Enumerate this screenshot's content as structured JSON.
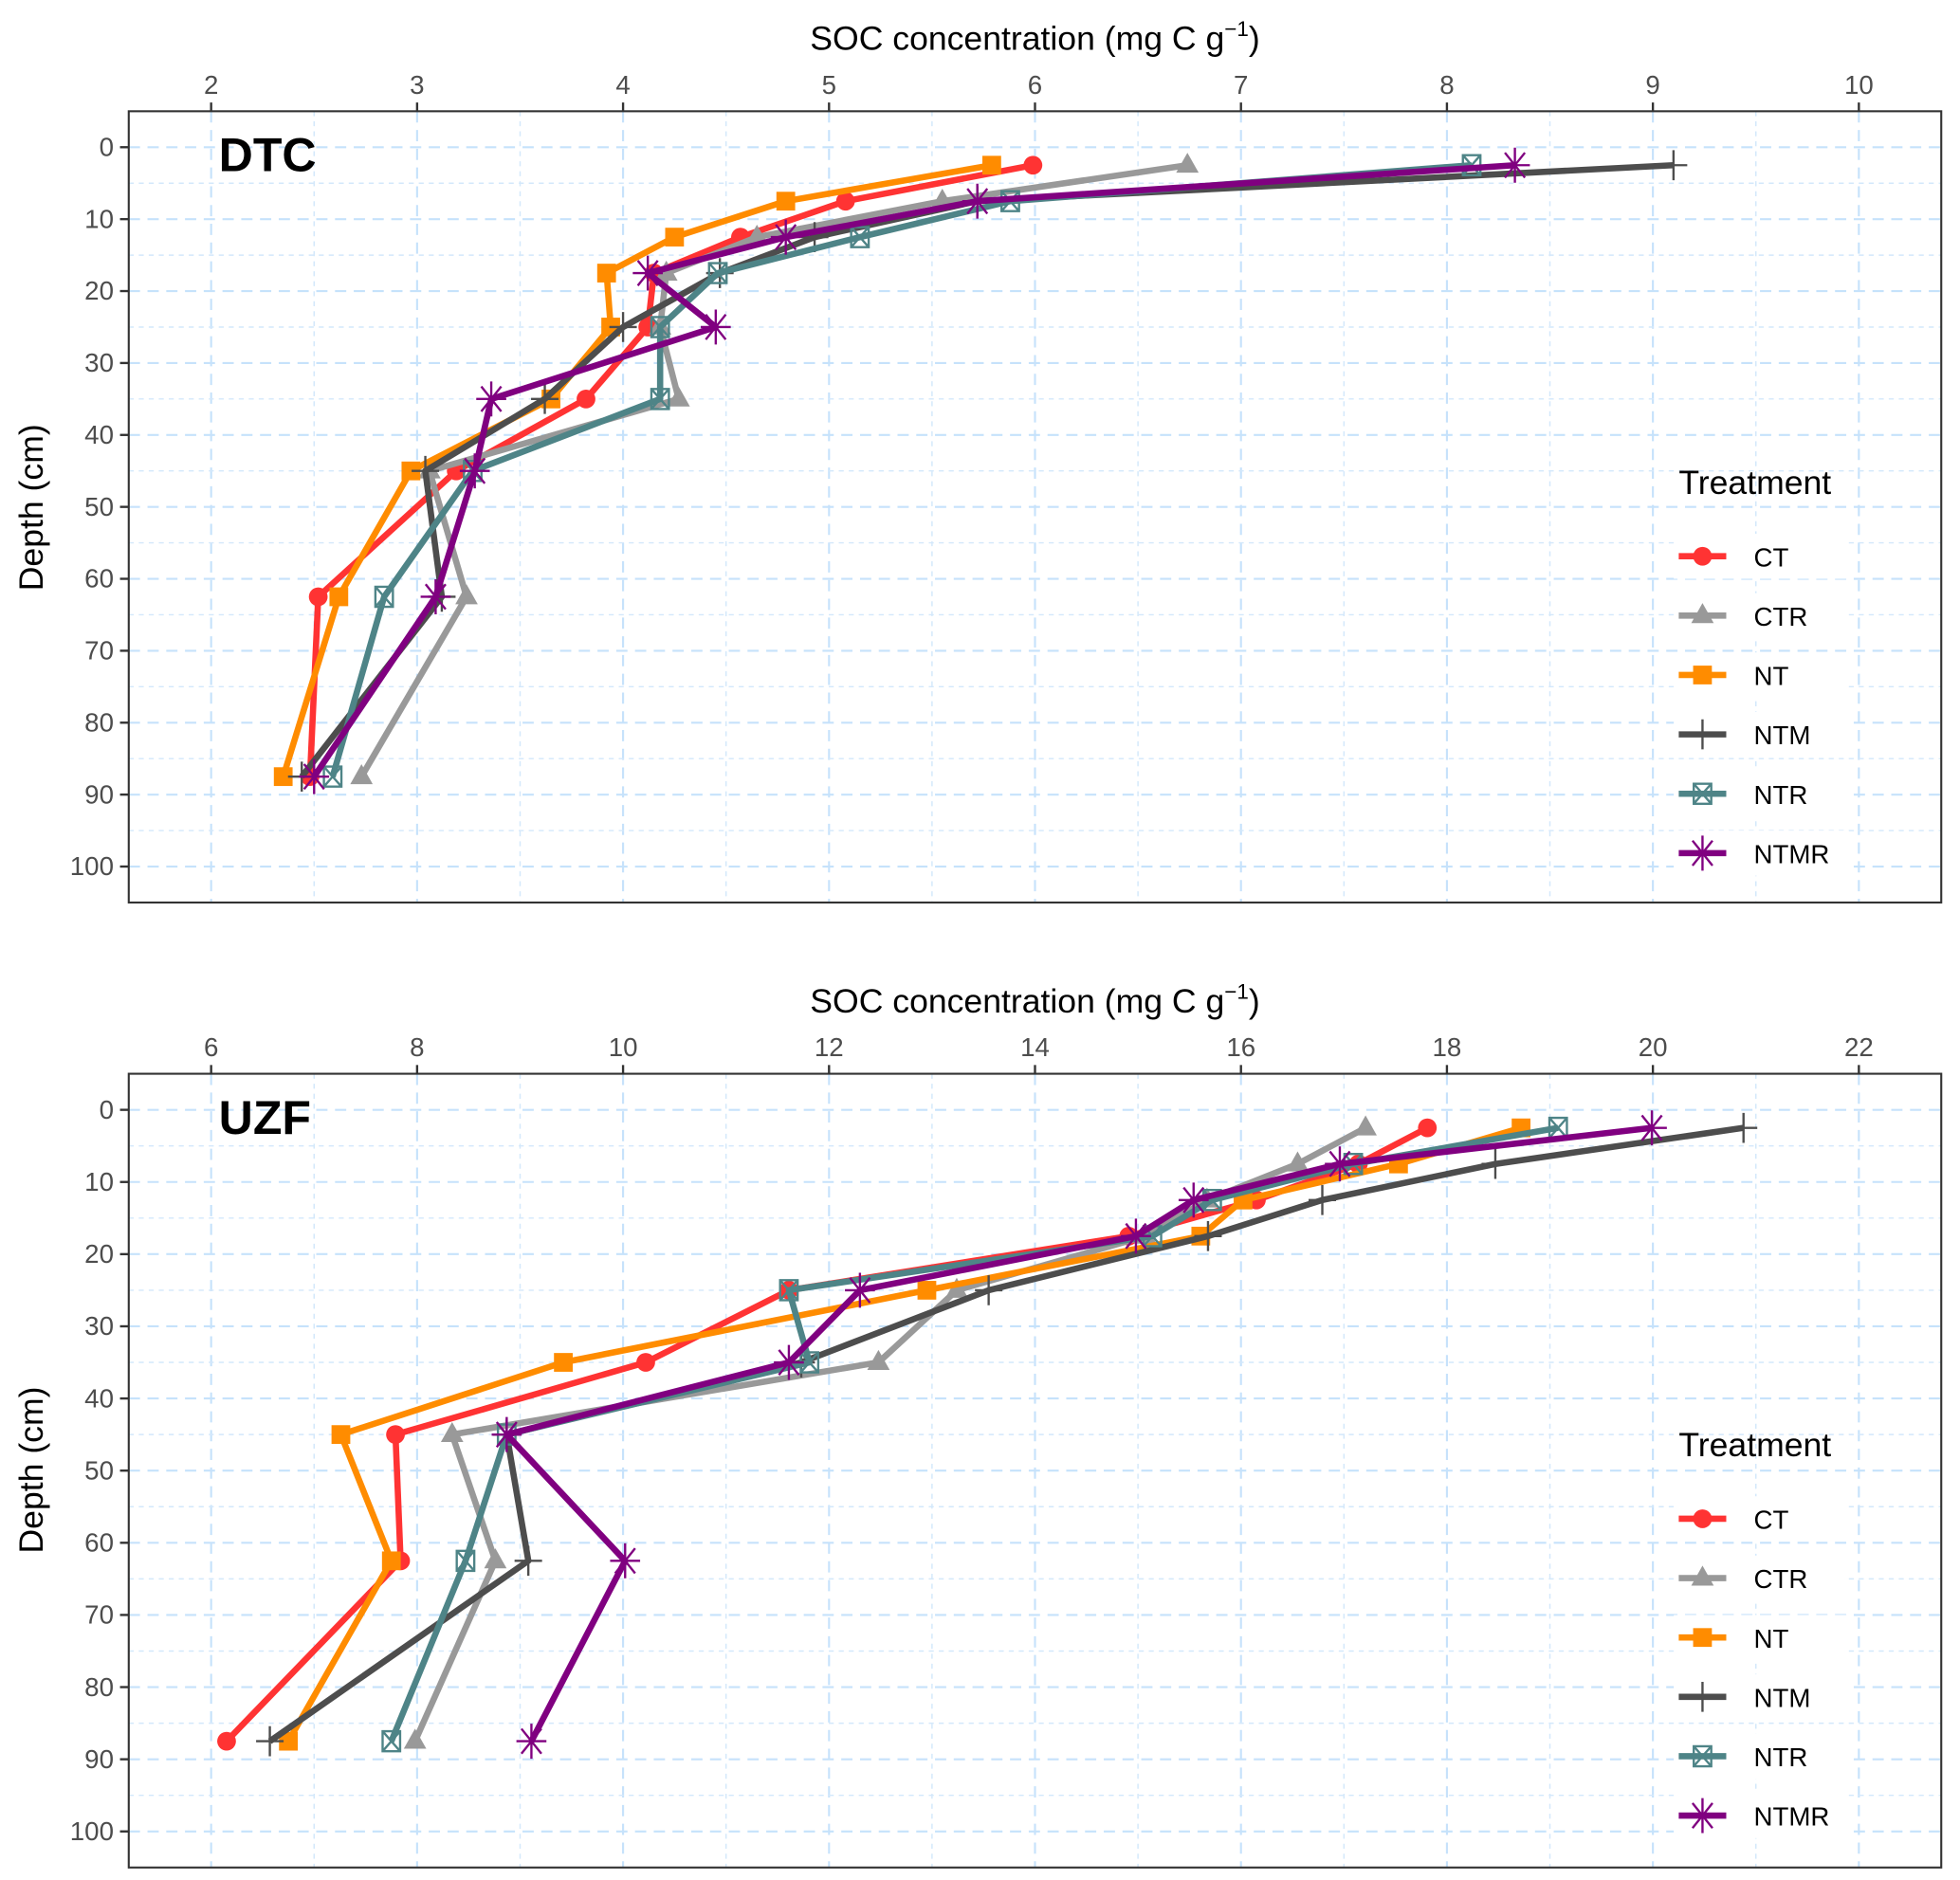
{
  "chart_data": [
    {
      "type": "line",
      "panel_label": "DTC",
      "title": "",
      "xlabel": "SOC concentration (mg C  g",
      "xlabel_superscript": "−1",
      "xlabel_suffix": ")",
      "xlabel_position": "top",
      "ylabel": "Depth (cm)",
      "xlim": [
        1.6,
        10.4
      ],
      "ylim": [
        105,
        -5
      ],
      "y_reversed": true,
      "x_ticks": [
        2,
        3,
        4,
        5,
        6,
        7,
        8,
        9,
        10
      ],
      "y_ticks": [
        0,
        10,
        20,
        30,
        40,
        50,
        60,
        70,
        80,
        90,
        100
      ],
      "grid": true,
      "legend_title": "Treatment",
      "legend_position": "right-inside",
      "depth": [
        2.5,
        7.5,
        12.5,
        17.5,
        25,
        35,
        45,
        62.5,
        87.5
      ],
      "series": [
        {
          "name": "CT",
          "color": "#ff3333",
          "marker": "circle",
          "values": [
            5.99,
            5.08,
            4.57,
            4.15,
            4.12,
            3.82,
            3.19,
            2.52,
            2.48
          ]
        },
        {
          "name": "CTR",
          "color": "#999999",
          "marker": "triangle",
          "values": [
            6.74,
            5.55,
            4.65,
            4.21,
            4.18,
            4.27,
            3.06,
            3.24,
            2.73
          ]
        },
        {
          "name": "NT",
          "color": "#ff8c00",
          "marker": "square",
          "values": [
            5.79,
            4.79,
            4.25,
            3.92,
            3.94,
            3.65,
            2.97,
            2.62,
            2.35
          ]
        },
        {
          "name": "NTM",
          "color": "#4d4d4d",
          "marker": "plus",
          "values": [
            9.1,
            5.72,
            4.93,
            4.47,
            4.0,
            3.62,
            3.04,
            3.12,
            2.44
          ]
        },
        {
          "name": "NTR",
          "color": "#4e8487",
          "marker": "boxx",
          "values": [
            8.12,
            5.88,
            5.15,
            4.46,
            4.18,
            4.18,
            3.27,
            2.84,
            2.59
          ]
        },
        {
          "name": "NTMR",
          "color": "#800080",
          "marker": "asterisk",
          "values": [
            8.33,
            5.72,
            4.79,
            4.12,
            4.45,
            3.36,
            3.28,
            3.09,
            2.5
          ]
        }
      ]
    },
    {
      "type": "line",
      "panel_label": "UZF",
      "title": "",
      "xlabel": "SOC concentration (mg C  g",
      "xlabel_superscript": "−1",
      "xlabel_suffix": ")",
      "xlabel_position": "top",
      "ylabel": "Depth (cm)",
      "xlim": [
        5.2,
        22.8
      ],
      "ylim": [
        105,
        -5
      ],
      "y_reversed": true,
      "x_ticks": [
        6,
        8,
        10,
        12,
        14,
        16,
        18,
        20,
        22
      ],
      "y_ticks": [
        0,
        10,
        20,
        30,
        40,
        50,
        60,
        70,
        80,
        90,
        100
      ],
      "grid": true,
      "legend_title": "Treatment",
      "legend_position": "right-inside",
      "depth": [
        2.5,
        7.5,
        12.5,
        17.5,
        25,
        35,
        45,
        62.5,
        87.5
      ],
      "series": [
        {
          "name": "CT",
          "color": "#ff3333",
          "marker": "circle",
          "values": [
            17.81,
            17.14,
            16.15,
            14.91,
            11.61,
            10.22,
            7.79,
            7.84,
            6.15
          ]
        },
        {
          "name": "CTR",
          "color": "#999999",
          "marker": "triangle",
          "values": [
            17.21,
            16.55,
            15.67,
            15.07,
            13.24,
            12.48,
            8.34,
            8.76,
            7.98
          ]
        },
        {
          "name": "NT",
          "color": "#ff8c00",
          "marker": "square",
          "values": [
            18.72,
            17.53,
            16.02,
            15.61,
            12.95,
            9.42,
            7.26,
            7.75,
            6.75
          ]
        },
        {
          "name": "NTM",
          "color": "#4d4d4d",
          "marker": "plus",
          "values": [
            20.88,
            18.47,
            16.79,
            15.68,
            13.55,
            11.73,
            8.87,
            9.08,
            6.57
          ]
        },
        {
          "name": "NTR",
          "color": "#4e8487",
          "marker": "boxx",
          "values": [
            19.08,
            17.09,
            15.72,
            15.14,
            11.61,
            11.81,
            8.87,
            8.47,
            7.75
          ]
        },
        {
          "name": "NTMR",
          "color": "#800080",
          "marker": "asterisk",
          "values": [
            19.99,
            16.96,
            15.54,
            14.98,
            12.3,
            11.61,
            8.87,
            10.02,
            9.11
          ]
        }
      ]
    }
  ]
}
